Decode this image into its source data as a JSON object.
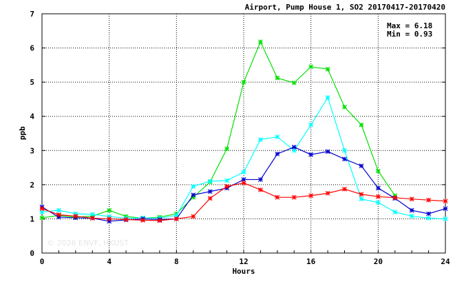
{
  "chart_data": {
    "type": "line",
    "title": "Airport, Pump House 1, SO2 20170417-20170420",
    "xlabel": "Hours",
    "ylabel": "ppb",
    "xlim": [
      0,
      24
    ],
    "ylim": [
      0,
      7
    ],
    "x_ticks": [
      0,
      4,
      8,
      12,
      16,
      20,
      24
    ],
    "y_ticks": [
      0,
      1,
      2,
      3,
      4,
      5,
      6,
      7
    ],
    "grid": true,
    "stats": [
      "Max = 6.18",
      "Min = 0.93"
    ],
    "watermark": "© 2026 ENVF, HKUST",
    "x": [
      0,
      1,
      2,
      3,
      4,
      5,
      6,
      7,
      8,
      9,
      10,
      11,
      12,
      13,
      14,
      15,
      16,
      17,
      18,
      19,
      20,
      21,
      22,
      23,
      24
    ],
    "series": [
      {
        "color": "#00e000",
        "values": [
          1.03,
          1.1,
          1.05,
          1.08,
          1.25,
          1.07,
          1.02,
          1.05,
          1.15,
          1.63,
          2.08,
          3.05,
          5.0,
          6.18,
          5.12,
          4.98,
          5.45,
          5.38,
          4.27,
          3.75,
          2.4,
          1.68,
          null,
          null,
          null
        ]
      },
      {
        "color": "#00ffff",
        "values": [
          1.2,
          1.25,
          1.15,
          1.13,
          1.07,
          1.02,
          1.03,
          1.02,
          1.1,
          1.95,
          2.1,
          2.12,
          2.37,
          3.32,
          3.4,
          3.0,
          3.75,
          4.55,
          3.0,
          1.58,
          1.48,
          1.2,
          1.08,
          1.02,
          1.0
        ]
      },
      {
        "color": "#0000cc",
        "values": [
          1.35,
          1.05,
          1.03,
          1.02,
          0.93,
          0.97,
          1.0,
          0.98,
          1.0,
          1.7,
          1.8,
          1.9,
          2.15,
          2.15,
          2.9,
          3.1,
          2.88,
          2.97,
          2.75,
          2.55,
          1.9,
          1.6,
          1.25,
          1.15,
          1.3
        ]
      },
      {
        "color": "#ff0000",
        "values": [
          1.3,
          1.12,
          1.08,
          1.02,
          1.0,
          0.98,
          0.96,
          0.95,
          1.0,
          1.07,
          1.6,
          1.95,
          2.05,
          1.85,
          1.63,
          1.63,
          1.68,
          1.75,
          1.87,
          1.72,
          1.65,
          1.62,
          1.58,
          1.55,
          1.52
        ]
      }
    ]
  }
}
